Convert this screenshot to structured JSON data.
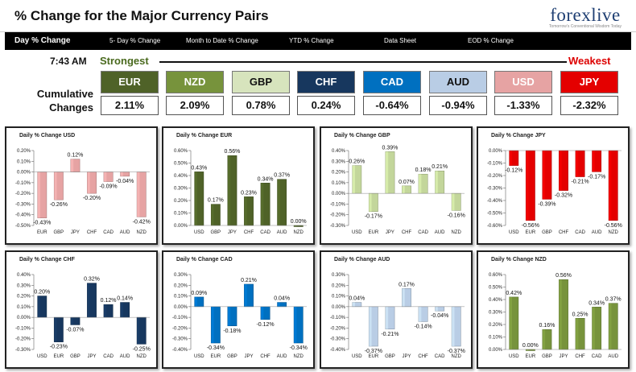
{
  "header": {
    "title": "% Change for the Major Currency Pairs",
    "logo_text": "forexlive",
    "logo_tagline": "Tomorrow's Conventional Wisdom Today"
  },
  "tabs": [
    {
      "label": "Day % Change",
      "active": true
    },
    {
      "label": "5- Day % Change"
    },
    {
      "label": "Month to Date % Change"
    },
    {
      "label": "YTD % Change"
    },
    {
      "label": "Data Sheet"
    },
    {
      "label": "EOD % Change"
    }
  ],
  "summary": {
    "time": "7:43 AM",
    "strongest_label": "Strongest",
    "weakest_label": "Weakest",
    "cumulative_label_1": "Cumulative",
    "cumulative_label_2": "Changes",
    "currencies": [
      {
        "code": "EUR",
        "value": "2.11%",
        "bg": "#4f6228",
        "fg": "#ffffff"
      },
      {
        "code": "NZD",
        "value": "2.09%",
        "bg": "#77933c",
        "fg": "#ffffff"
      },
      {
        "code": "GBP",
        "value": "0.78%",
        "bg": "#d7e4bd",
        "fg": "#111111"
      },
      {
        "code": "CHF",
        "value": "0.24%",
        "bg": "#17375e",
        "fg": "#ffffff"
      },
      {
        "code": "CAD",
        "value": "-0.64%",
        "bg": "#0070c0",
        "fg": "#ffffff"
      },
      {
        "code": "AUD",
        "value": "-0.94%",
        "bg": "#b9cde5",
        "fg": "#111111"
      },
      {
        "code": "USD",
        "value": "-1.33%",
        "bg": "#e6a3a3",
        "fg": "#ffffff"
      },
      {
        "code": "JPY",
        "value": "-2.32%",
        "bg": "#e40000",
        "fg": "#ffffff"
      }
    ]
  },
  "chart_data": [
    {
      "type": "bar",
      "title": "Daily % Change USD",
      "categories": [
        "EUR",
        "GBP",
        "JPY",
        "CHF",
        "CAD",
        "AUD",
        "NZD"
      ],
      "values": [
        -0.43,
        -0.26,
        0.12,
        -0.2,
        -0.09,
        -0.04,
        -0.42
      ],
      "labels": [
        "-0.43%",
        "-0.26%",
        "0.12%",
        "-0.20%",
        "-0.09%",
        "-0.04%",
        "-0.42%"
      ],
      "ylim": [
        -0.5,
        0.2
      ],
      "step": 0.1,
      "color": "#e6a3a3"
    },
    {
      "type": "bar",
      "title": "Daily % Change EUR",
      "categories": [
        "USD",
        "GBP",
        "JPY",
        "CHF",
        "CAD",
        "AUD",
        "NZD"
      ],
      "values": [
        0.43,
        0.17,
        0.56,
        0.23,
        0.34,
        0.37,
        0.0
      ],
      "labels": [
        "0.43%",
        "0.17%",
        "0.56%",
        "0.23%",
        "0.34%",
        "0.37%",
        "0.00%"
      ],
      "ylim": [
        0,
        0.6
      ],
      "step": 0.1,
      "color": "#4f6228"
    },
    {
      "type": "bar",
      "title": "Daily % Change GBP",
      "categories": [
        "USD",
        "EUR",
        "JPY",
        "CHF",
        "CAD",
        "AUD",
        "NZD"
      ],
      "values": [
        0.26,
        -0.17,
        0.39,
        0.07,
        0.18,
        0.21,
        -0.16
      ],
      "labels": [
        "0.26%",
        "-0.17%",
        "0.39%",
        "0.07%",
        "0.18%",
        "0.21%",
        "-0.16%"
      ],
      "ylim": [
        -0.3,
        0.4
      ],
      "step": 0.1,
      "color": "#c3d69b"
    },
    {
      "type": "bar",
      "title": "Daily % Change JPY",
      "categories": [
        "USD",
        "EUR",
        "GBP",
        "CHF",
        "CAD",
        "AUD",
        "NZD"
      ],
      "values": [
        -0.12,
        -0.56,
        -0.39,
        -0.32,
        -0.21,
        -0.17,
        -0.56
      ],
      "labels": [
        "-0.12%",
        "-0.56%",
        "-0.39%",
        "-0.32%",
        "-0.21%",
        "-0.17%",
        "-0.56%"
      ],
      "ylim": [
        -0.6,
        0
      ],
      "step": 0.1,
      "color": "#e40000"
    },
    {
      "type": "bar",
      "title": "Daily % Change CHF",
      "categories": [
        "USD",
        "EUR",
        "GBP",
        "JPY",
        "CAD",
        "AUD",
        "NZD"
      ],
      "values": [
        0.2,
        -0.23,
        -0.07,
        0.32,
        0.12,
        0.14,
        -0.25
      ],
      "labels": [
        "0.20%",
        "-0.23%",
        "-0.07%",
        "0.32%",
        "0.12%",
        "0.14%",
        "-0.25%"
      ],
      "ylim": [
        -0.3,
        0.4
      ],
      "step": 0.1,
      "color": "#17375e"
    },
    {
      "type": "bar",
      "title": "Daily % Change CAD",
      "categories": [
        "USD",
        "EUR",
        "GBP",
        "JPY",
        "CHF",
        "AUD",
        "NZD"
      ],
      "values": [
        0.09,
        -0.34,
        -0.18,
        0.21,
        -0.12,
        0.04,
        -0.34
      ],
      "labels": [
        "0.09%",
        "-0.34%",
        "-0.18%",
        "0.21%",
        "-0.12%",
        "0.04%",
        "-0.34%"
      ],
      "ylim": [
        -0.4,
        0.3
      ],
      "step": 0.1,
      "color": "#0070c0"
    },
    {
      "type": "bar",
      "title": "Daily % Change AUD",
      "categories": [
        "USD",
        "EUR",
        "GBP",
        "JPY",
        "CHF",
        "CAD",
        "NZD"
      ],
      "values": [
        0.04,
        -0.37,
        -0.21,
        0.17,
        -0.14,
        -0.04,
        -0.37
      ],
      "labels": [
        "0.04%",
        "-0.37%",
        "-0.21%",
        "0.17%",
        "-0.14%",
        "-0.04%",
        "-0.37%"
      ],
      "ylim": [
        -0.4,
        0.3
      ],
      "step": 0.1,
      "color": "#b9cde5"
    },
    {
      "type": "bar",
      "title": "Daily % Change NZD",
      "categories": [
        "USD",
        "EUR",
        "GBP",
        "JPY",
        "CHF",
        "CAD",
        "AUD"
      ],
      "values": [
        0.42,
        0.0,
        0.16,
        0.56,
        0.25,
        0.34,
        0.37
      ],
      "labels": [
        "0.42%",
        "0.00%",
        "0.16%",
        "0.56%",
        "0.25%",
        "0.34%",
        "0.37%"
      ],
      "ylim": [
        0,
        0.6
      ],
      "step": 0.1,
      "color": "#77933c"
    }
  ]
}
